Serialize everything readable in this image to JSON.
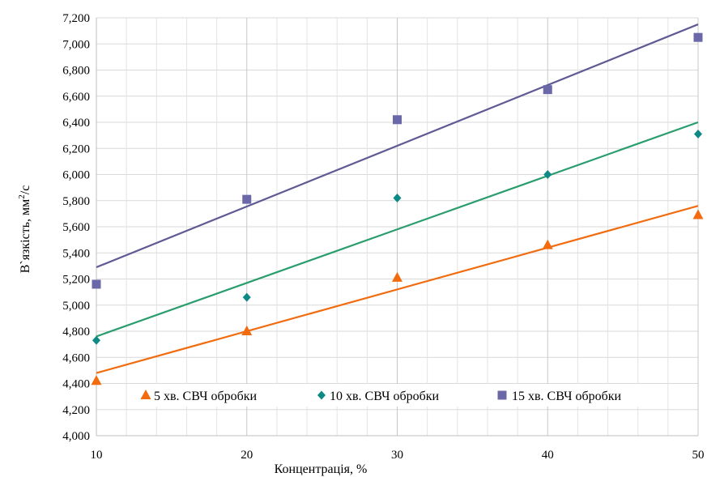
{
  "chart_data": {
    "type": "scatter",
    "xlabel": "Концентрація, %",
    "ylabel_main": "В`язкість, мм",
    "ylabel_sup": "2",
    "ylabel_tail": "/с",
    "xlim": [
      10,
      50
    ],
    "ylim": [
      4000,
      7200
    ],
    "x_ticks": [
      "10",
      "20",
      "30",
      "40",
      "50"
    ],
    "y_ticks": [
      "4,000",
      "4,200",
      "4,400",
      "4,600",
      "4,800",
      "5,000",
      "5,200",
      "5,400",
      "5,600",
      "5,800",
      "6,000",
      "6,200",
      "6,400",
      "6,600",
      "6,800",
      "7,000",
      "7,200"
    ],
    "grid": true,
    "legend_position": "bottom-inside",
    "series": [
      {
        "name": "5 хв. СВЧ обробки",
        "marker": "triangle",
        "color": "#F26B0F",
        "x": [
          10,
          20,
          30,
          40,
          50
        ],
        "y": [
          4420,
          4800,
          5210,
          5460,
          5690
        ],
        "trendline": {
          "x": [
            10,
            50
          ],
          "y": [
            4480,
            5760
          ]
        }
      },
      {
        "name": "10 хв. СВЧ обробки",
        "marker": "diamond",
        "color": "#0E8A86",
        "trend_color": "#2A9D6E",
        "x": [
          10,
          20,
          30,
          40,
          50
        ],
        "y": [
          4730,
          5060,
          5820,
          6000,
          6310
        ],
        "trendline": {
          "x": [
            10,
            50
          ],
          "y": [
            4760,
            6400
          ]
        }
      },
      {
        "name": "15 хв. СВЧ обробки",
        "marker": "square",
        "color": "#6A68A8",
        "trend_color": "#5F5A94",
        "x": [
          10,
          20,
          30,
          40,
          50
        ],
        "y": [
          5160,
          5810,
          6420,
          6650,
          7050
        ],
        "trendline": {
          "x": [
            10,
            50
          ],
          "y": [
            5290,
            7150
          ]
        }
      }
    ]
  }
}
